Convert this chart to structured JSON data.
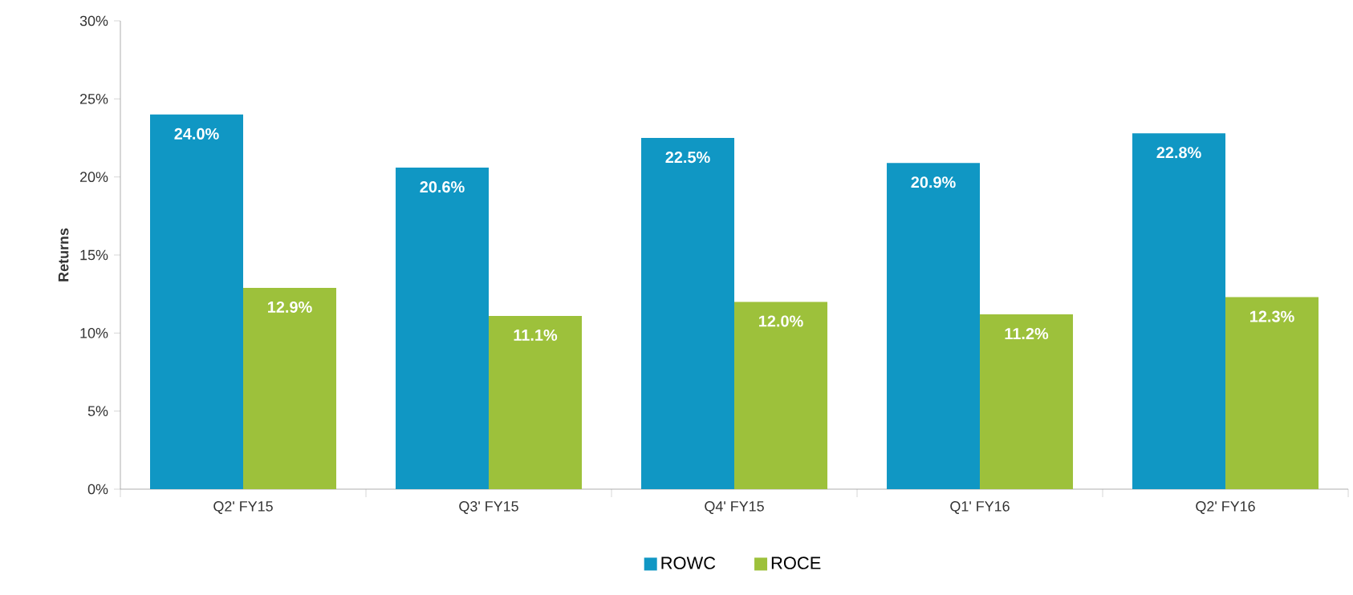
{
  "chart_data": {
    "type": "bar",
    "ylabel": "Returns",
    "categories": [
      "Q2' FY15",
      "Q3' FY15",
      "Q4' FY15",
      "Q1' FY16",
      "Q2' FY16"
    ],
    "series": [
      {
        "name": "ROWC",
        "color": "#1097c4",
        "values": [
          24.0,
          20.6,
          22.5,
          20.9,
          22.8
        ],
        "value_labels": [
          "24.0%",
          "20.6%",
          "22.5%",
          "20.9%",
          "22.8%"
        ]
      },
      {
        "name": "ROCE",
        "color": "#9dc13b",
        "values": [
          12.9,
          11.1,
          12.0,
          11.2,
          12.3
        ],
        "value_labels": [
          "12.9%",
          "11.1%",
          "12.0%",
          "11.2%",
          "12.3%"
        ]
      }
    ],
    "ylim": [
      0,
      30
    ],
    "yticks": [
      {
        "value": 0,
        "label": "0%"
      },
      {
        "value": 5,
        "label": "5%"
      },
      {
        "value": 10,
        "label": "10%"
      },
      {
        "value": 15,
        "label": "15%"
      },
      {
        "value": 20,
        "label": "20%"
      },
      {
        "value": 25,
        "label": "25%"
      },
      {
        "value": 30,
        "label": "30%"
      }
    ],
    "legend": "bottom",
    "grid": false
  }
}
